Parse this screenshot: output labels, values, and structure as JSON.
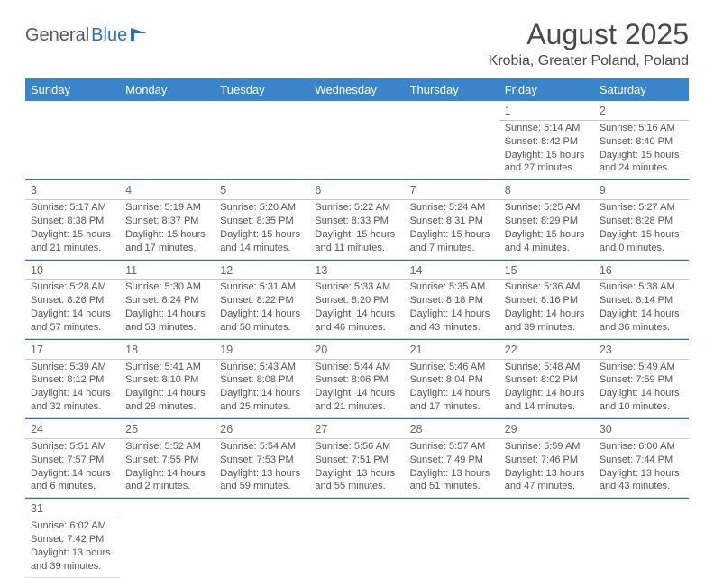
{
  "brand": {
    "general": "General",
    "blue": "Blue"
  },
  "title": "August 2025",
  "location": "Krobia, Greater Poland, Poland",
  "colors": {
    "header_bg": "#3a85c9",
    "header_text": "#ffffff",
    "row_border": "#2d72b5",
    "cell_text": "#555555",
    "logo_blue": "#2d72b5"
  },
  "typography": {
    "title_fontsize": 32,
    "location_fontsize": 16,
    "dayheader_fontsize": 13,
    "cell_fontsize": 11
  },
  "day_headers": [
    "Sunday",
    "Monday",
    "Tuesday",
    "Wednesday",
    "Thursday",
    "Friday",
    "Saturday"
  ],
  "weeks": [
    [
      null,
      null,
      null,
      null,
      null,
      {
        "day": "1",
        "sunrise": "Sunrise: 5:14 AM",
        "sunset": "Sunset: 8:42 PM",
        "daylight1": "Daylight: 15 hours",
        "daylight2": "and 27 minutes."
      },
      {
        "day": "2",
        "sunrise": "Sunrise: 5:16 AM",
        "sunset": "Sunset: 8:40 PM",
        "daylight1": "Daylight: 15 hours",
        "daylight2": "and 24 minutes."
      }
    ],
    [
      {
        "day": "3",
        "sunrise": "Sunrise: 5:17 AM",
        "sunset": "Sunset: 8:38 PM",
        "daylight1": "Daylight: 15 hours",
        "daylight2": "and 21 minutes."
      },
      {
        "day": "4",
        "sunrise": "Sunrise: 5:19 AM",
        "sunset": "Sunset: 8:37 PM",
        "daylight1": "Daylight: 15 hours",
        "daylight2": "and 17 minutes."
      },
      {
        "day": "5",
        "sunrise": "Sunrise: 5:20 AM",
        "sunset": "Sunset: 8:35 PM",
        "daylight1": "Daylight: 15 hours",
        "daylight2": "and 14 minutes."
      },
      {
        "day": "6",
        "sunrise": "Sunrise: 5:22 AM",
        "sunset": "Sunset: 8:33 PM",
        "daylight1": "Daylight: 15 hours",
        "daylight2": "and 11 minutes."
      },
      {
        "day": "7",
        "sunrise": "Sunrise: 5:24 AM",
        "sunset": "Sunset: 8:31 PM",
        "daylight1": "Daylight: 15 hours",
        "daylight2": "and 7 minutes."
      },
      {
        "day": "8",
        "sunrise": "Sunrise: 5:25 AM",
        "sunset": "Sunset: 8:29 PM",
        "daylight1": "Daylight: 15 hours",
        "daylight2": "and 4 minutes."
      },
      {
        "day": "9",
        "sunrise": "Sunrise: 5:27 AM",
        "sunset": "Sunset: 8:28 PM",
        "daylight1": "Daylight: 15 hours",
        "daylight2": "and 0 minutes."
      }
    ],
    [
      {
        "day": "10",
        "sunrise": "Sunrise: 5:28 AM",
        "sunset": "Sunset: 8:26 PM",
        "daylight1": "Daylight: 14 hours",
        "daylight2": "and 57 minutes."
      },
      {
        "day": "11",
        "sunrise": "Sunrise: 5:30 AM",
        "sunset": "Sunset: 8:24 PM",
        "daylight1": "Daylight: 14 hours",
        "daylight2": "and 53 minutes."
      },
      {
        "day": "12",
        "sunrise": "Sunrise: 5:31 AM",
        "sunset": "Sunset: 8:22 PM",
        "daylight1": "Daylight: 14 hours",
        "daylight2": "and 50 minutes."
      },
      {
        "day": "13",
        "sunrise": "Sunrise: 5:33 AM",
        "sunset": "Sunset: 8:20 PM",
        "daylight1": "Daylight: 14 hours",
        "daylight2": "and 46 minutes."
      },
      {
        "day": "14",
        "sunrise": "Sunrise: 5:35 AM",
        "sunset": "Sunset: 8:18 PM",
        "daylight1": "Daylight: 14 hours",
        "daylight2": "and 43 minutes."
      },
      {
        "day": "15",
        "sunrise": "Sunrise: 5:36 AM",
        "sunset": "Sunset: 8:16 PM",
        "daylight1": "Daylight: 14 hours",
        "daylight2": "and 39 minutes."
      },
      {
        "day": "16",
        "sunrise": "Sunrise: 5:38 AM",
        "sunset": "Sunset: 8:14 PM",
        "daylight1": "Daylight: 14 hours",
        "daylight2": "and 36 minutes."
      }
    ],
    [
      {
        "day": "17",
        "sunrise": "Sunrise: 5:39 AM",
        "sunset": "Sunset: 8:12 PM",
        "daylight1": "Daylight: 14 hours",
        "daylight2": "and 32 minutes."
      },
      {
        "day": "18",
        "sunrise": "Sunrise: 5:41 AM",
        "sunset": "Sunset: 8:10 PM",
        "daylight1": "Daylight: 14 hours",
        "daylight2": "and 28 minutes."
      },
      {
        "day": "19",
        "sunrise": "Sunrise: 5:43 AM",
        "sunset": "Sunset: 8:08 PM",
        "daylight1": "Daylight: 14 hours",
        "daylight2": "and 25 minutes."
      },
      {
        "day": "20",
        "sunrise": "Sunrise: 5:44 AM",
        "sunset": "Sunset: 8:06 PM",
        "daylight1": "Daylight: 14 hours",
        "daylight2": "and 21 minutes."
      },
      {
        "day": "21",
        "sunrise": "Sunrise: 5:46 AM",
        "sunset": "Sunset: 8:04 PM",
        "daylight1": "Daylight: 14 hours",
        "daylight2": "and 17 minutes."
      },
      {
        "day": "22",
        "sunrise": "Sunrise: 5:48 AM",
        "sunset": "Sunset: 8:02 PM",
        "daylight1": "Daylight: 14 hours",
        "daylight2": "and 14 minutes."
      },
      {
        "day": "23",
        "sunrise": "Sunrise: 5:49 AM",
        "sunset": "Sunset: 7:59 PM",
        "daylight1": "Daylight: 14 hours",
        "daylight2": "and 10 minutes."
      }
    ],
    [
      {
        "day": "24",
        "sunrise": "Sunrise: 5:51 AM",
        "sunset": "Sunset: 7:57 PM",
        "daylight1": "Daylight: 14 hours",
        "daylight2": "and 6 minutes."
      },
      {
        "day": "25",
        "sunrise": "Sunrise: 5:52 AM",
        "sunset": "Sunset: 7:55 PM",
        "daylight1": "Daylight: 14 hours",
        "daylight2": "and 2 minutes."
      },
      {
        "day": "26",
        "sunrise": "Sunrise: 5:54 AM",
        "sunset": "Sunset: 7:53 PM",
        "daylight1": "Daylight: 13 hours",
        "daylight2": "and 59 minutes."
      },
      {
        "day": "27",
        "sunrise": "Sunrise: 5:56 AM",
        "sunset": "Sunset: 7:51 PM",
        "daylight1": "Daylight: 13 hours",
        "daylight2": "and 55 minutes."
      },
      {
        "day": "28",
        "sunrise": "Sunrise: 5:57 AM",
        "sunset": "Sunset: 7:49 PM",
        "daylight1": "Daylight: 13 hours",
        "daylight2": "and 51 minutes."
      },
      {
        "day": "29",
        "sunrise": "Sunrise: 5:59 AM",
        "sunset": "Sunset: 7:46 PM",
        "daylight1": "Daylight: 13 hours",
        "daylight2": "and 47 minutes."
      },
      {
        "day": "30",
        "sunrise": "Sunrise: 6:00 AM",
        "sunset": "Sunset: 7:44 PM",
        "daylight1": "Daylight: 13 hours",
        "daylight2": "and 43 minutes."
      }
    ],
    [
      {
        "day": "31",
        "sunrise": "Sunrise: 6:02 AM",
        "sunset": "Sunset: 7:42 PM",
        "daylight1": "Daylight: 13 hours",
        "daylight2": "and 39 minutes."
      },
      null,
      null,
      null,
      null,
      null,
      null
    ]
  ]
}
